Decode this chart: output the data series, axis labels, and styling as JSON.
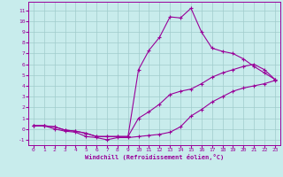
{
  "xlabel": "Windchill (Refroidissement éolien,°C)",
  "xlim": [
    -0.5,
    23.5
  ],
  "ylim": [
    -1.5,
    11.8
  ],
  "yticks": [
    -1,
    0,
    1,
    2,
    3,
    4,
    5,
    6,
    7,
    8,
    9,
    10,
    11
  ],
  "xticks": [
    0,
    1,
    2,
    3,
    4,
    5,
    6,
    7,
    8,
    9,
    10,
    11,
    12,
    13,
    14,
    15,
    16,
    17,
    18,
    19,
    20,
    21,
    22,
    23
  ],
  "bg_color": "#c8ecec",
  "grid_color": "#a0cccc",
  "line_color": "#990099",
  "line1_x": [
    0,
    1,
    2,
    3,
    4,
    5,
    6,
    7,
    8,
    9,
    10,
    11,
    12,
    13,
    14,
    15,
    16,
    17,
    18,
    19,
    20,
    21,
    22,
    23
  ],
  "line1_y": [
    0.3,
    0.3,
    0.2,
    -0.1,
    -0.2,
    -0.4,
    -0.7,
    -0.7,
    -0.7,
    -0.7,
    5.5,
    7.3,
    8.5,
    10.4,
    10.3,
    11.2,
    9.0,
    7.5,
    7.2,
    7.0,
    6.5,
    5.8,
    5.2,
    4.6
  ],
  "line2_x": [
    0,
    1,
    2,
    3,
    4,
    5,
    6,
    7,
    8,
    9,
    10,
    11,
    12,
    13,
    14,
    15,
    16,
    17,
    18,
    19,
    20,
    21,
    22,
    23
  ],
  "line2_y": [
    0.3,
    0.3,
    0.2,
    -0.1,
    -0.2,
    -0.4,
    -0.7,
    -0.7,
    -0.7,
    -0.7,
    1.0,
    1.6,
    2.3,
    3.2,
    3.5,
    3.7,
    4.2,
    4.8,
    5.2,
    5.5,
    5.8,
    6.0,
    5.5,
    4.6
  ],
  "line3_x": [
    0,
    1,
    2,
    3,
    4,
    5,
    6,
    7,
    8,
    9,
    10,
    11,
    12,
    13,
    14,
    15,
    16,
    17,
    18,
    19,
    20,
    21,
    22,
    23
  ],
  "line3_y": [
    0.3,
    0.3,
    0.0,
    -0.2,
    -0.3,
    -0.7,
    -0.8,
    -1.0,
    -0.8,
    -0.8,
    -0.7,
    -0.6,
    -0.5,
    -0.3,
    0.2,
    1.2,
    1.8,
    2.5,
    3.0,
    3.5,
    3.8,
    4.0,
    4.2,
    4.5
  ]
}
